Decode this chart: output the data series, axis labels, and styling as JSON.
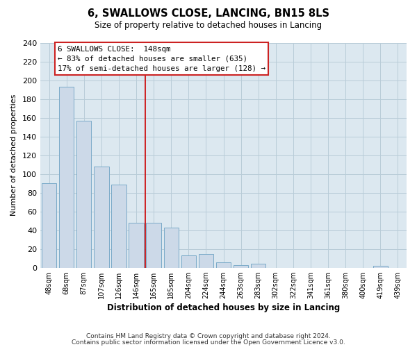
{
  "title": "6, SWALLOWS CLOSE, LANCING, BN15 8LS",
  "subtitle": "Size of property relative to detached houses in Lancing",
  "xlabel": "Distribution of detached houses by size in Lancing",
  "ylabel": "Number of detached properties",
  "bar_labels": [
    "48sqm",
    "68sqm",
    "87sqm",
    "107sqm",
    "126sqm",
    "146sqm",
    "165sqm",
    "185sqm",
    "204sqm",
    "224sqm",
    "244sqm",
    "263sqm",
    "283sqm",
    "302sqm",
    "322sqm",
    "341sqm",
    "361sqm",
    "380sqm",
    "400sqm",
    "419sqm",
    "439sqm"
  ],
  "bar_values": [
    90,
    193,
    157,
    108,
    89,
    48,
    48,
    43,
    13,
    15,
    6,
    3,
    4,
    0,
    0,
    0,
    0,
    0,
    0,
    2,
    0
  ],
  "bar_color": "#ccd9e8",
  "bar_edge_color": "#7aaac8",
  "vline_x": 5.5,
  "vline_color": "#cc0000",
  "property_size": "148sqm",
  "pct_smaller": 83,
  "count_smaller": 635,
  "pct_larger_semi": 17,
  "count_larger_semi": 128,
  "ylim": [
    0,
    240
  ],
  "yticks": [
    0,
    20,
    40,
    60,
    80,
    100,
    120,
    140,
    160,
    180,
    200,
    220,
    240
  ],
  "footer1": "Contains HM Land Registry data © Crown copyright and database right 2024.",
  "footer2": "Contains public sector information licensed under the Open Government Licence v3.0.",
  "fig_bg_color": "#ffffff",
  "plot_bg_color": "#dce8f0",
  "grid_color": "#b8ccd8"
}
